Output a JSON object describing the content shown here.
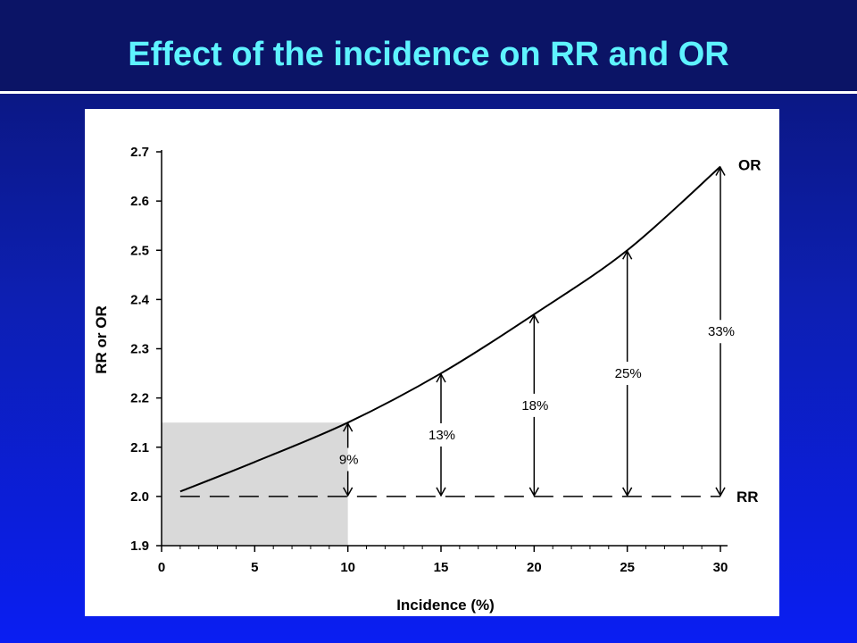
{
  "title": "Effect of the incidence on RR and OR",
  "chart_data": {
    "type": "line",
    "title": "",
    "xlabel": "Incidence (%)",
    "ylabel": "RR or OR",
    "xlim": [
      0,
      30
    ],
    "ylim": [
      1.9,
      2.7
    ],
    "x_ticks": [
      "0",
      "5",
      "10",
      "15",
      "20",
      "25",
      "30"
    ],
    "y_ticks": [
      "1.9",
      "2.0",
      "2.1",
      "2.2",
      "2.3",
      "2.4",
      "2.5",
      "2.6",
      "2.7"
    ],
    "grid": false,
    "series": [
      {
        "name": "OR",
        "style": "solid",
        "x": [
          1,
          5,
          10,
          15,
          20,
          25,
          30
        ],
        "y": [
          2.01,
          2.07,
          2.15,
          2.25,
          2.37,
          2.5,
          2.67
        ]
      },
      {
        "name": "RR",
        "style": "dashed",
        "x": [
          1,
          30
        ],
        "y": [
          2.0,
          2.0
        ]
      }
    ],
    "annotations": [
      {
        "x": 10,
        "label": "9%"
      },
      {
        "x": 15,
        "label": "13%"
      },
      {
        "x": 20,
        "label": "18%"
      },
      {
        "x": 25,
        "label": "25%"
      },
      {
        "x": 30,
        "label": "33%"
      }
    ],
    "shaded_region": {
      "x": [
        0,
        10
      ],
      "y": [
        1.9,
        2.15
      ],
      "color": "#d9d9d9"
    }
  }
}
